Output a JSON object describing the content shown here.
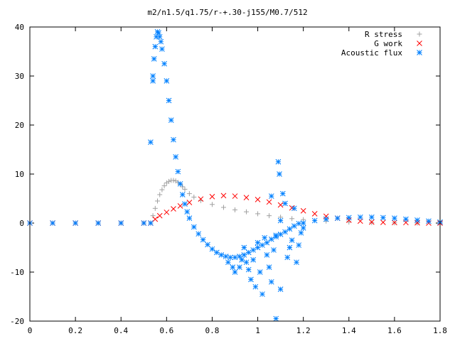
{
  "chart_data": {
    "type": "scatter",
    "title": "m2/n1.5/q1.75/r-+.30-j155/M0.7/512",
    "xlabel": "",
    "ylabel": "",
    "xlim": [
      0,
      1.8
    ],
    "ylim": [
      -20,
      40
    ],
    "xticks": [
      "0",
      "0.2",
      "0.4",
      "0.6",
      "0.8",
      "1",
      "1.2",
      "1.4",
      "1.6",
      "1.8"
    ],
    "yticks": [
      "-20",
      "-10",
      "0",
      "10",
      "20",
      "30",
      "40"
    ],
    "grid": false,
    "legend_position": "top-right",
    "series": [
      {
        "name": "R stress",
        "marker": "plus",
        "color": "#a0a0a0",
        "points": [
          [
            0.0,
            0.0
          ],
          [
            0.1,
            0.0
          ],
          [
            0.2,
            0.0
          ],
          [
            0.3,
            0.0
          ],
          [
            0.4,
            0.0
          ],
          [
            0.5,
            0.0
          ],
          [
            0.53,
            0.0
          ],
          [
            0.54,
            1.5
          ],
          [
            0.55,
            3.0
          ],
          [
            0.56,
            4.5
          ],
          [
            0.57,
            5.8
          ],
          [
            0.58,
            6.8
          ],
          [
            0.59,
            7.6
          ],
          [
            0.6,
            8.2
          ],
          [
            0.61,
            8.5
          ],
          [
            0.62,
            8.7
          ],
          [
            0.63,
            8.7
          ],
          [
            0.64,
            8.6
          ],
          [
            0.65,
            8.3
          ],
          [
            0.66,
            7.9
          ],
          [
            0.67,
            7.4
          ],
          [
            0.68,
            6.9
          ],
          [
            0.7,
            6.0
          ],
          [
            0.72,
            5.3
          ],
          [
            0.75,
            4.6
          ],
          [
            0.8,
            3.8
          ],
          [
            0.85,
            3.2
          ],
          [
            0.9,
            2.7
          ],
          [
            0.95,
            2.3
          ],
          [
            1.0,
            1.9
          ],
          [
            1.05,
            1.5
          ],
          [
            1.1,
            1.2
          ],
          [
            1.15,
            0.9
          ],
          [
            1.2,
            0.7
          ],
          [
            1.3,
            0.4
          ],
          [
            1.4,
            0.2
          ],
          [
            1.5,
            0.1
          ],
          [
            1.6,
            0.05
          ],
          [
            1.7,
            0.0
          ],
          [
            1.8,
            0.0
          ]
        ]
      },
      {
        "name": "G work",
        "marker": "cross",
        "color": "#ff0000",
        "points": [
          [
            0.0,
            0.0
          ],
          [
            0.1,
            0.0
          ],
          [
            0.2,
            0.0
          ],
          [
            0.3,
            0.0
          ],
          [
            0.4,
            0.0
          ],
          [
            0.5,
            0.0
          ],
          [
            0.53,
            0.0
          ],
          [
            0.55,
            0.8
          ],
          [
            0.57,
            1.5
          ],
          [
            0.6,
            2.2
          ],
          [
            0.63,
            2.9
          ],
          [
            0.66,
            3.5
          ],
          [
            0.7,
            4.2
          ],
          [
            0.75,
            4.9
          ],
          [
            0.8,
            5.4
          ],
          [
            0.85,
            5.6
          ],
          [
            0.9,
            5.5
          ],
          [
            0.95,
            5.2
          ],
          [
            1.0,
            4.8
          ],
          [
            1.05,
            4.3
          ],
          [
            1.1,
            3.7
          ],
          [
            1.15,
            3.1
          ],
          [
            1.2,
            2.5
          ],
          [
            1.25,
            1.9
          ],
          [
            1.3,
            1.4
          ],
          [
            1.35,
            1.0
          ],
          [
            1.4,
            0.6
          ],
          [
            1.45,
            0.4
          ],
          [
            1.5,
            0.2
          ],
          [
            1.55,
            0.15
          ],
          [
            1.6,
            0.1
          ],
          [
            1.65,
            0.1
          ],
          [
            1.7,
            0.05
          ],
          [
            1.75,
            0.0
          ],
          [
            1.8,
            0.0
          ]
        ]
      },
      {
        "name": "Acoustic flux",
        "marker": "star",
        "color": "#0080ff",
        "points": [
          [
            0.0,
            0.0
          ],
          [
            0.1,
            0.0
          ],
          [
            0.2,
            0.0
          ],
          [
            0.3,
            0.0
          ],
          [
            0.4,
            0.0
          ],
          [
            0.5,
            0.0
          ],
          [
            0.53,
            0.0
          ],
          [
            0.53,
            16.5
          ],
          [
            0.54,
            29.0
          ],
          [
            0.54,
            30.0
          ],
          [
            0.545,
            33.5
          ],
          [
            0.55,
            36.0
          ],
          [
            0.555,
            38.0
          ],
          [
            0.56,
            39.0
          ],
          [
            0.565,
            38.8
          ],
          [
            0.57,
            38.0
          ],
          [
            0.575,
            37.0
          ],
          [
            0.58,
            35.5
          ],
          [
            0.59,
            32.5
          ],
          [
            0.6,
            29.0
          ],
          [
            0.61,
            25.0
          ],
          [
            0.62,
            21.0
          ],
          [
            0.63,
            17.0
          ],
          [
            0.64,
            13.5
          ],
          [
            0.65,
            10.5
          ],
          [
            0.66,
            8.0
          ],
          [
            0.67,
            5.8
          ],
          [
            0.68,
            3.9
          ],
          [
            0.69,
            2.3
          ],
          [
            0.7,
            1.0
          ],
          [
            0.72,
            -0.8
          ],
          [
            0.74,
            -2.2
          ],
          [
            0.76,
            -3.4
          ],
          [
            0.78,
            -4.4
          ],
          [
            0.8,
            -5.3
          ],
          [
            0.82,
            -6.0
          ],
          [
            0.84,
            -6.5
          ],
          [
            0.86,
            -6.8
          ],
          [
            0.88,
            -7.0
          ],
          [
            0.9,
            -7.0
          ],
          [
            0.92,
            -6.8
          ],
          [
            0.94,
            -6.5
          ],
          [
            0.96,
            -6.0
          ],
          [
            0.98,
            -5.5
          ],
          [
            1.0,
            -5.0
          ],
          [
            1.02,
            -4.5
          ],
          [
            1.04,
            -4.0
          ],
          [
            1.06,
            -3.3
          ],
          [
            1.08,
            -2.8
          ],
          [
            1.1,
            -2.3
          ],
          [
            1.12,
            -1.8
          ],
          [
            1.14,
            -1.2
          ],
          [
            1.16,
            -0.6
          ],
          [
            1.18,
            -0.1
          ],
          [
            1.2,
            0.0
          ],
          [
            1.25,
            0.5
          ],
          [
            1.3,
            0.8
          ],
          [
            1.35,
            1.0
          ],
          [
            1.4,
            1.1
          ],
          [
            1.45,
            1.2
          ],
          [
            1.5,
            1.2
          ],
          [
            1.55,
            1.1
          ],
          [
            1.6,
            1.0
          ],
          [
            1.65,
            0.8
          ],
          [
            1.7,
            0.6
          ],
          [
            1.75,
            0.4
          ],
          [
            1.8,
            0.2
          ],
          [
            0.87,
            -8.0
          ],
          [
            0.89,
            -9.0
          ],
          [
            0.9,
            -10.0
          ],
          [
            0.92,
            -9.0
          ],
          [
            0.93,
            -7.5
          ],
          [
            0.94,
            -5.0
          ],
          [
            0.95,
            -8.0
          ],
          [
            0.96,
            -9.5
          ],
          [
            0.97,
            -11.5
          ],
          [
            0.98,
            -7.5
          ],
          [
            0.99,
            -13.0
          ],
          [
            1.0,
            -4.0
          ],
          [
            1.01,
            -10.0
          ],
          [
            1.02,
            -14.5
          ],
          [
            1.03,
            -3.0
          ],
          [
            1.04,
            -6.5
          ],
          [
            1.05,
            -9.0
          ],
          [
            1.06,
            -12.0
          ],
          [
            1.07,
            -5.5
          ],
          [
            1.08,
            -2.5
          ],
          [
            1.09,
            12.5
          ],
          [
            1.095,
            10.0
          ],
          [
            1.1,
            -13.5
          ],
          [
            1.08,
            -19.5
          ],
          [
            1.11,
            6.0
          ],
          [
            1.12,
            4.0
          ],
          [
            1.13,
            -7.0
          ],
          [
            1.14,
            -5.0
          ],
          [
            1.15,
            -3.5
          ],
          [
            1.16,
            3.0
          ],
          [
            1.17,
            -8.0
          ],
          [
            1.18,
            -4.5
          ],
          [
            1.19,
            -2.0
          ],
          [
            1.2,
            -1.0
          ],
          [
            1.06,
            5.5
          ],
          [
            1.1,
            0.5
          ]
        ]
      }
    ]
  }
}
